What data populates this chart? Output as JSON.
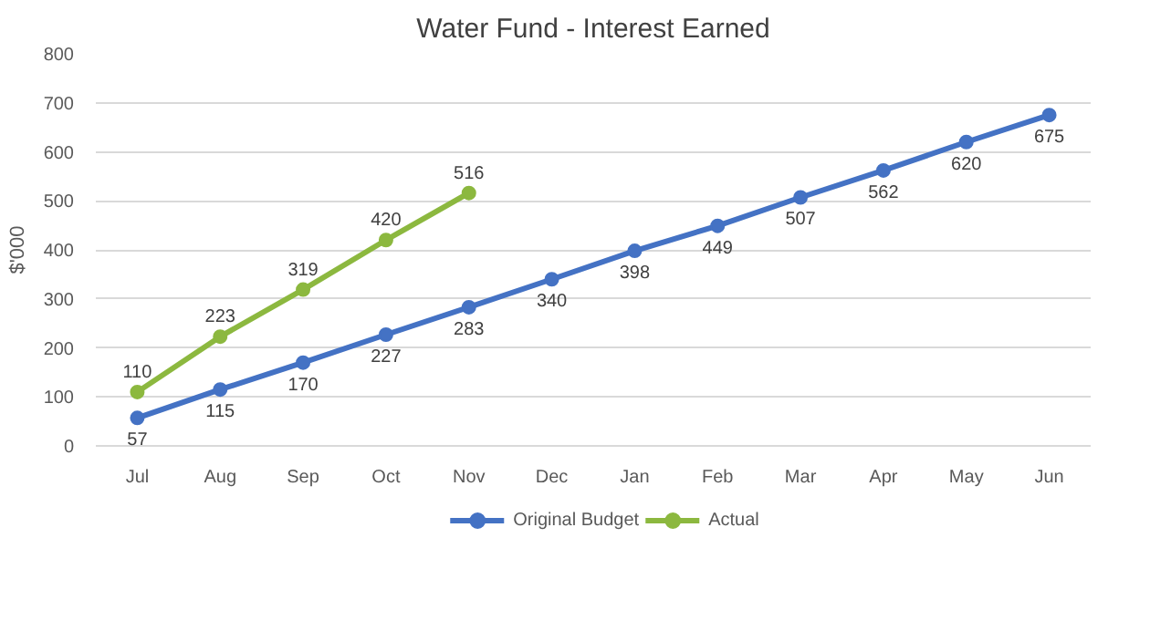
{
  "chart_data": {
    "type": "line",
    "title": "Water Fund - Interest Earned",
    "ylabel": "$'000",
    "categories": [
      "Jul",
      "Aug",
      "Sep",
      "Oct",
      "Nov",
      "Dec",
      "Jan",
      "Feb",
      "Mar",
      "Apr",
      "May",
      "Jun"
    ],
    "series": [
      {
        "name": "Original Budget",
        "color": "#4472c4",
        "values": [
          57,
          115,
          170,
          227,
          283,
          340,
          398,
          449,
          507,
          562,
          620,
          675
        ]
      },
      {
        "name": "Actual",
        "color": "#8cb83f",
        "values": [
          110,
          223,
          319,
          420,
          516,
          null,
          null,
          null,
          null,
          null,
          null,
          null
        ]
      }
    ],
    "ylim": [
      0,
      800
    ],
    "yticks": [
      0,
      100,
      200,
      300,
      400,
      500,
      600,
      700,
      800
    ],
    "grid": "y",
    "legend": "bottom",
    "marker": "circle",
    "line_style": "solid",
    "data_labels": true
  }
}
